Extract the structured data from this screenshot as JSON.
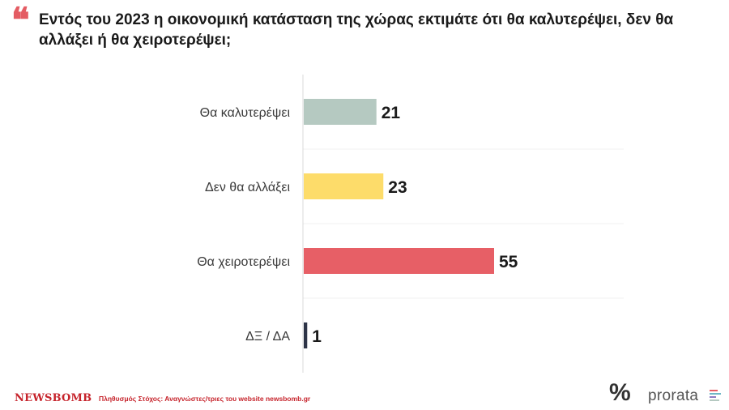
{
  "title": "Εντός του 2023 η οικονομική κατάσταση της χώρας εκτιμάτε ότι θα καλυτερέψει, δεν θα αλλάξει ή θα χειροτερέψει;",
  "chart_data": {
    "type": "bar",
    "orientation": "horizontal",
    "categories": [
      "Θα καλυτερέψει",
      "Δεν θα αλλάξει",
      "Θα χειροτερέψει",
      "ΔΞ / ΔΑ"
    ],
    "values": [
      21,
      23,
      55,
      1
    ],
    "colors": [
      "#b5c9c1",
      "#fddc6a",
      "#e75f66",
      "#2d3447"
    ],
    "xlim": [
      0,
      55
    ],
    "grid": true
  },
  "footer": {
    "brand": "NEWSBOMB",
    "note": "Πληθυσμός Στόχος: Αναγνώστες/τριες του website newsbomb.gr",
    "percent_logo": "%",
    "prorata_logo": "prorata"
  },
  "logo_colors": [
    "#e75f66",
    "#6fb7c6",
    "#8e7cc3",
    "#b5c9c1"
  ]
}
